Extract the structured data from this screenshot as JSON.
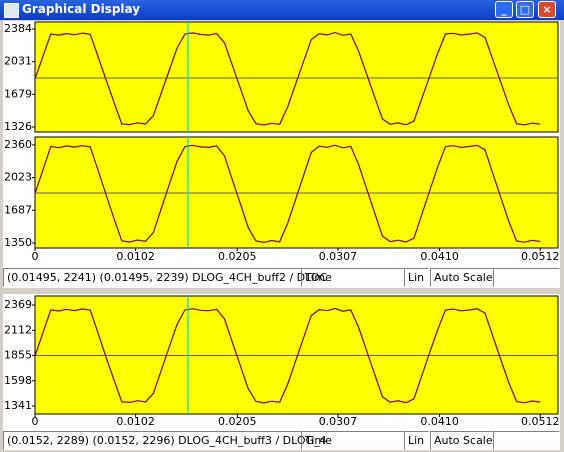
{
  "window": {
    "title": "Graphical Display"
  },
  "chart_data": [
    {
      "type": "line",
      "color": "#800040",
      "background": "#ffff00",
      "cursor_x": 0.0155,
      "cursor_color": "#00d8d8",
      "reference_line": 1855,
      "xlim": [
        0,
        0.053
      ],
      "ylim": [
        1272,
        2460
      ],
      "yticks": [
        1326,
        1679,
        2031,
        2384
      ],
      "x": [
        0,
        0.0008,
        0.0016,
        0.0024,
        0.0032,
        0.004,
        0.0048,
        0.0056,
        0.0064,
        0.0072,
        0.008,
        0.0088,
        0.0096,
        0.0104,
        0.0112,
        0.012,
        0.0128,
        0.0136,
        0.0144,
        0.0152,
        0.016,
        0.0168,
        0.0176,
        0.0184,
        0.0192,
        0.02,
        0.0208,
        0.0216,
        0.0224,
        0.0232,
        0.024,
        0.0248,
        0.0256,
        0.0264,
        0.0272,
        0.028,
        0.0288,
        0.0296,
        0.0304,
        0.0312,
        0.032,
        0.0328,
        0.0336,
        0.0344,
        0.0352,
        0.036,
        0.0368,
        0.0376,
        0.0384,
        0.0392,
        0.04,
        0.0408,
        0.0416,
        0.0424,
        0.0432,
        0.044,
        0.0448,
        0.0456,
        0.0464,
        0.0472,
        0.048,
        0.0488,
        0.0496,
        0.0504,
        0.0512
      ],
      "values": [
        1845,
        2088,
        2330,
        2318,
        2335,
        2322,
        2340,
        2326,
        2083,
        1839,
        1597,
        1360,
        1352,
        1371,
        1358,
        1450,
        1693,
        1936,
        2179,
        2330,
        2342,
        2325,
        2319,
        2336,
        2235,
        1991,
        1748,
        1505,
        1362,
        1348,
        1366,
        1355,
        1541,
        1784,
        2027,
        2270,
        2333,
        2321,
        2345,
        2316,
        2330,
        2143,
        1900,
        1657,
        1414,
        1355,
        1370,
        1350,
        1389,
        1632,
        1875,
        2119,
        2330,
        2338,
        2320,
        2329,
        2341,
        2295,
        2052,
        1809,
        1566,
        1361,
        1349,
        1368,
        1356
      ]
    },
    {
      "type": "line",
      "color": "#800040",
      "background": "#ffff00",
      "cursor_x": 0.0155,
      "cursor_color": "#00d8d8",
      "reference_line": 1865,
      "xlim": [
        0,
        0.053
      ],
      "ylim": [
        1298,
        2442
      ],
      "yticks": [
        1350,
        1687,
        2023,
        2360
      ],
      "xticks": [
        0,
        0.0102,
        0.0205,
        0.0307,
        {
          "value": 0.041,
          "label": "0.0410"
        },
        0.0512
      ],
      "x": [
        0,
        0.0008,
        0.0016,
        0.0024,
        0.0032,
        0.004,
        0.0048,
        0.0056,
        0.0064,
        0.0072,
        0.008,
        0.0088,
        0.0096,
        0.0104,
        0.0112,
        0.012,
        0.0128,
        0.0136,
        0.0144,
        0.0152,
        0.016,
        0.0168,
        0.0176,
        0.0184,
        0.0192,
        0.02,
        0.0208,
        0.0216,
        0.0224,
        0.0232,
        0.024,
        0.0248,
        0.0256,
        0.0264,
        0.0272,
        0.028,
        0.0288,
        0.0296,
        0.0304,
        0.0312,
        0.032,
        0.0328,
        0.0336,
        0.0344,
        0.0352,
        0.036,
        0.0368,
        0.0376,
        0.0384,
        0.0392,
        0.04,
        0.0408,
        0.0416,
        0.0424,
        0.0432,
        0.044,
        0.0448,
        0.0456,
        0.0464,
        0.0472,
        0.048,
        0.0488,
        0.0496,
        0.0504,
        0.0512
      ],
      "values": [
        1860,
        2100,
        2345,
        2332,
        2350,
        2338,
        2352,
        2340,
        2095,
        1850,
        1605,
        1372,
        1360,
        1380,
        1366,
        1458,
        1705,
        1950,
        2192,
        2344,
        2356,
        2340,
        2335,
        2350,
        2248,
        2000,
        1757,
        1512,
        1370,
        1356,
        1375,
        1362,
        1550,
        1795,
        2040,
        2283,
        2348,
        2336,
        2358,
        2331,
        2345,
        2155,
        1910,
        1666,
        1422,
        1364,
        1378,
        1360,
        1398,
        1642,
        1888,
        2131,
        2344,
        2352,
        2335,
        2344,
        2355,
        2310,
        2064,
        1820,
        1576,
        1370,
        1358,
        1377,
        1365
      ]
    },
    {
      "type": "line",
      "color": "#800040",
      "background": "#ffff00",
      "cursor_x": 0.0155,
      "cursor_color": "#00d8d8",
      "reference_line": 1855,
      "xlim": [
        0,
        0.053
      ],
      "ylim": [
        1260,
        2461
      ],
      "yticks": [
        1341,
        1598,
        1855,
        2112,
        2369
      ],
      "xticks": [
        0,
        0.0102,
        0.0205,
        0.0307,
        {
          "value": 0.041,
          "label": "0.0410"
        },
        0.0512
      ],
      "x": [
        0,
        0.0008,
        0.0016,
        0.0024,
        0.0032,
        0.004,
        0.0048,
        0.0056,
        0.0064,
        0.0072,
        0.008,
        0.0088,
        0.0096,
        0.0104,
        0.0112,
        0.012,
        0.0128,
        0.0136,
        0.0144,
        0.0152,
        0.016,
        0.0168,
        0.0176,
        0.0184,
        0.0192,
        0.02,
        0.0208,
        0.0216,
        0.0224,
        0.0232,
        0.024,
        0.0248,
        0.0256,
        0.0264,
        0.0272,
        0.028,
        0.0288,
        0.0296,
        0.0304,
        0.0312,
        0.032,
        0.0328,
        0.0336,
        0.0344,
        0.0352,
        0.036,
        0.0368,
        0.0376,
        0.0384,
        0.0392,
        0.04,
        0.0408,
        0.0416,
        0.0424,
        0.0432,
        0.044,
        0.0448,
        0.0456,
        0.0464,
        0.0472,
        0.048,
        0.0488,
        0.0496,
        0.0504,
        0.0512
      ],
      "values": [
        1850,
        2085,
        2320,
        2308,
        2326,
        2312,
        2330,
        2316,
        2080,
        1840,
        1610,
        1385,
        1378,
        1395,
        1382,
        1470,
        1705,
        1940,
        2172,
        2320,
        2332,
        2315,
        2310,
        2326,
        2228,
        1990,
        1755,
        1520,
        1388,
        1372,
        1390,
        1380,
        1560,
        1795,
        2030,
        2262,
        2323,
        2311,
        2334,
        2306,
        2320,
        2140,
        1905,
        1670,
        1436,
        1380,
        1394,
        1375,
        1414,
        1650,
        1885,
        2115,
        2320,
        2328,
        2310,
        2319,
        2331,
        2288,
        2050,
        1815,
        1582,
        1386,
        1374,
        1392,
        1381
      ]
    }
  ],
  "status_bars": [
    {
      "readout": "(0.01495, 2241) (0.01495, 2239)  DLOG_4CH_buff2 / DLOC",
      "axis": "Time",
      "scale": "Lin",
      "mode": "Auto Scale"
    },
    {
      "readout": "(0.0152, 2289) (0.0152, 2296)  DLOG_4CH_buff3 / DLOG_4",
      "axis": "Time",
      "scale": "Lin",
      "mode": "Auto Scale"
    }
  ]
}
